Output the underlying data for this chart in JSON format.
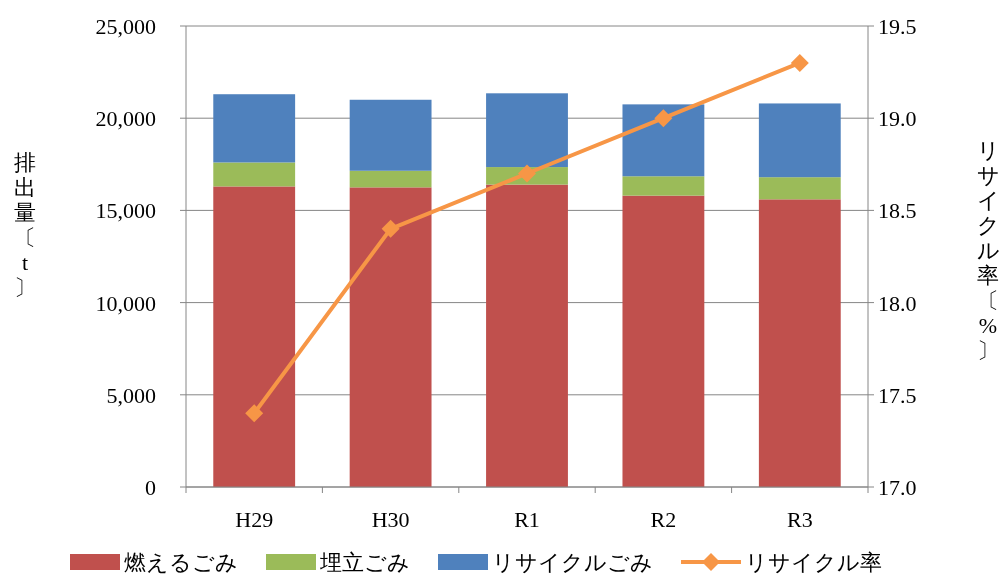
{
  "chart_data": {
    "type": "bar",
    "stacked": true,
    "categories": [
      "H29",
      "H30",
      "R1",
      "R2",
      "R3"
    ],
    "series": [
      {
        "name": "燃えるごみ",
        "color": "#c0504d",
        "values": [
          16300,
          16250,
          16400,
          15800,
          15600
        ]
      },
      {
        "name": "埋立ごみ",
        "color": "#9bbb59",
        "values": [
          1300,
          900,
          950,
          1050,
          1200
        ]
      },
      {
        "name": "リサイクルごみ",
        "color": "#4f81bd",
        "values": [
          3700,
          3850,
          4000,
          3900,
          4000
        ]
      },
      {
        "name": "リサイクル率",
        "type": "line",
        "axis": "y2",
        "color": "#f79646",
        "marker": "diamond",
        "values": [
          17.4,
          18.4,
          18.7,
          19.0,
          19.3
        ]
      }
    ],
    "ylabel": "排出量〔t〕",
    "y2label": "リサイクル率〔%〕",
    "ylim": [
      0,
      25000
    ],
    "yticks": [
      {
        "value": 0,
        "label": "0"
      },
      {
        "value": 5000,
        "label": "5,000"
      },
      {
        "value": 10000,
        "label": "10,000"
      },
      {
        "value": 15000,
        "label": "15,000"
      },
      {
        "value": 20000,
        "label": "20,000"
      },
      {
        "value": 25000,
        "label": "25,000"
      }
    ],
    "y2lim": [
      17,
      19.5
    ],
    "y2ticks": [
      {
        "value": 17,
        "label": "17.0"
      },
      {
        "value": 17.5,
        "label": "17.5"
      },
      {
        "value": 18,
        "label": "18.0"
      },
      {
        "value": 18.5,
        "label": "18.5"
      },
      {
        "value": 19,
        "label": "19.0"
      },
      {
        "value": 19.5,
        "label": "19.5"
      }
    ],
    "grid": "y",
    "legend": "bottom"
  }
}
